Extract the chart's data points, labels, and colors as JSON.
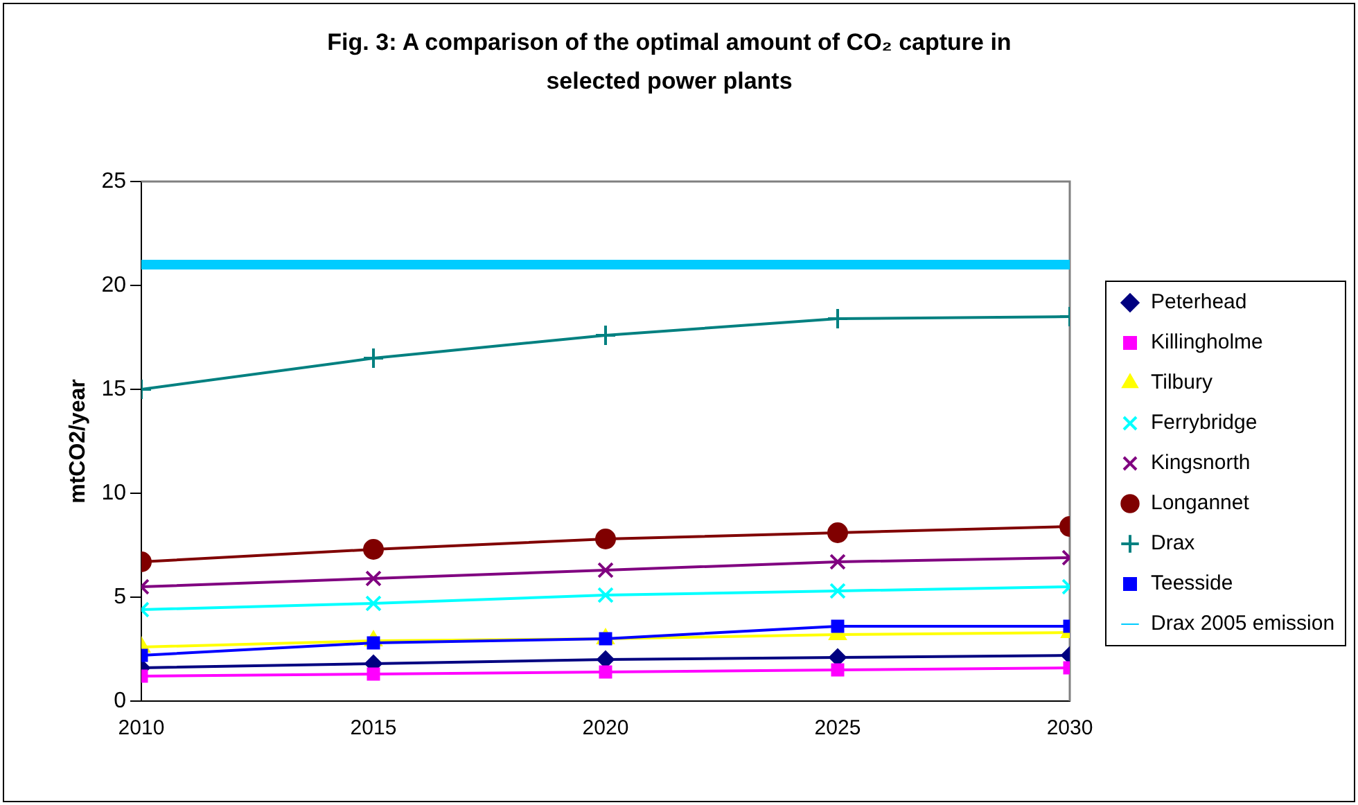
{
  "chart_data": {
    "type": "line",
    "title": "Fig. 3: A comparison of the optimal amount of CO₂ capture in selected power plants",
    "ylabel": "mtCO2/year",
    "x": [
      2010,
      2015,
      2020,
      2025,
      2030
    ],
    "xlim": [
      2010,
      2030
    ],
    "xticks": [
      2010,
      2015,
      2020,
      2025,
      2030
    ],
    "ylim": [
      0,
      25
    ],
    "yticks": [
      0,
      5,
      10,
      15,
      20,
      25
    ],
    "grid": false,
    "legend": "right",
    "series": [
      {
        "name": "Peterhead",
        "color": "#000080",
        "marker": "diamond",
        "values": [
          1.6,
          1.8,
          2.0,
          2.1,
          2.2
        ]
      },
      {
        "name": "Killingholme",
        "color": "#ff00ff",
        "marker": "square",
        "values": [
          1.2,
          1.3,
          1.4,
          1.5,
          1.6
        ]
      },
      {
        "name": "Tilbury",
        "color": "#ffff00",
        "marker": "triangle",
        "values": [
          2.6,
          2.9,
          3.0,
          3.2,
          3.3
        ]
      },
      {
        "name": "Ferrybridge",
        "color": "#00ffff",
        "marker": "cross",
        "values": [
          4.4,
          4.7,
          5.1,
          5.3,
          5.5
        ]
      },
      {
        "name": "Kingsnorth",
        "color": "#800080",
        "marker": "cross",
        "values": [
          5.5,
          5.9,
          6.3,
          6.7,
          6.9
        ]
      },
      {
        "name": "Longannet",
        "color": "#800000",
        "marker": "circle",
        "values": [
          6.7,
          7.3,
          7.8,
          8.1,
          8.4
        ]
      },
      {
        "name": "Drax",
        "color": "#008080",
        "marker": "cross",
        "values": [
          15.0,
          16.5,
          17.6,
          18.4,
          18.5
        ]
      },
      {
        "name": "Teesside",
        "color": "#0000ff",
        "marker": "square",
        "values": [
          2.2,
          2.8,
          3.0,
          3.6,
          3.6
        ]
      },
      {
        "name": "Drax 2005 emission",
        "color": "#00ccff",
        "marker": "none",
        "values": [
          21,
          21,
          21,
          21,
          21
        ]
      }
    ]
  }
}
